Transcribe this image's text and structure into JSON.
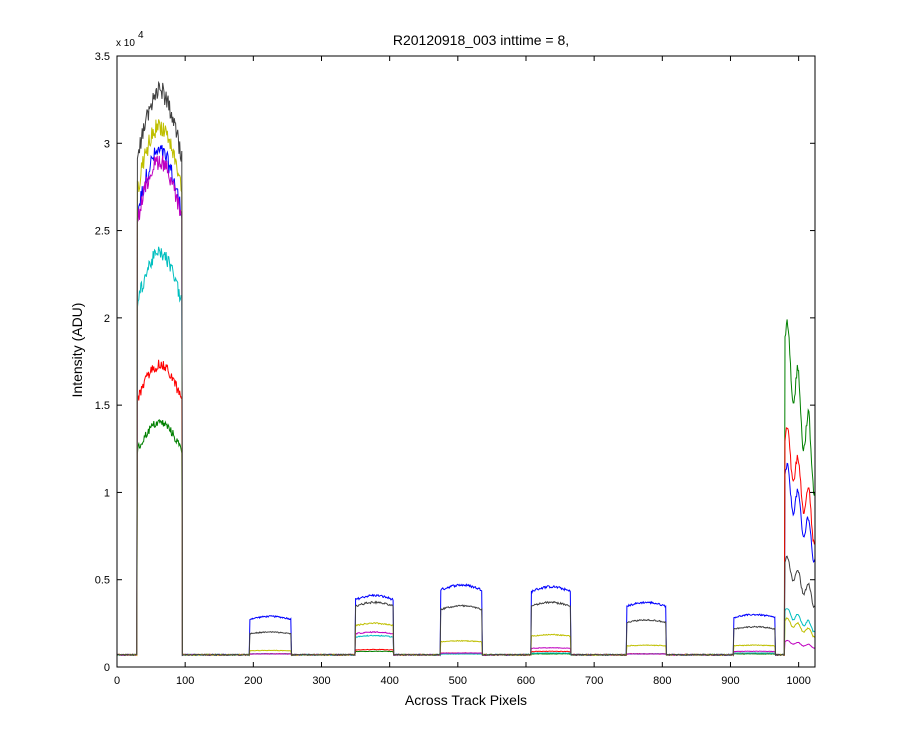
{
  "chart_data": {
    "type": "line",
    "title": "R20120918_003 inttime = 8,",
    "xlabel": "Across Track Pixels",
    "ylabel": "Intensity (ADU)",
    "xlim": [
      0,
      1024
    ],
    "ylim": [
      0,
      35000
    ],
    "x_ticks": [
      0,
      100,
      200,
      300,
      400,
      500,
      600,
      700,
      800,
      900,
      1000
    ],
    "y_ticks": [
      0,
      5000,
      10000,
      15000,
      20000,
      25000,
      30000,
      35000
    ],
    "y_tick_labels": [
      "0",
      "0.5",
      "1",
      "1.5",
      "2",
      "2.5",
      "3",
      "3.5"
    ],
    "y_exponent_base": "x 10",
    "y_exponent_power": "4",
    "grid": false,
    "legend": "none",
    "baseline": 700,
    "segments": [
      {
        "start": 30,
        "end": 95
      },
      {
        "start": 195,
        "end": 255
      },
      {
        "start": 350,
        "end": 405
      },
      {
        "start": 475,
        "end": 535
      },
      {
        "start": 608,
        "end": 665
      },
      {
        "start": 748,
        "end": 805
      },
      {
        "start": 905,
        "end": 965
      },
      {
        "start": 980,
        "end": 1024
      }
    ],
    "series": [
      {
        "color": "#0000ff",
        "levels": [
          29500,
          2900,
          4100,
          4700,
          4600,
          3700,
          3000,
          10000
        ]
      },
      {
        "color": "#008000",
        "levels": [
          14000,
          750,
          900,
          750,
          750,
          750,
          750,
          17000
        ]
      },
      {
        "color": "#ff0000",
        "levels": [
          17300,
          750,
          1000,
          800,
          900,
          750,
          800,
          12000
        ]
      },
      {
        "color": "#00bfbf",
        "levels": [
          23700,
          750,
          1800,
          750,
          800,
          750,
          800,
          3000
        ]
      },
      {
        "color": "#bf00bf",
        "levels": [
          29000,
          750,
          2000,
          800,
          1100,
          750,
          900,
          1400
        ]
      },
      {
        "color": "#bfbf00",
        "levels": [
          31000,
          950,
          2500,
          1500,
          1850,
          1250,
          1250,
          2500
        ]
      },
      {
        "color": "#404040",
        "levels": [
          33000,
          2000,
          3700,
          3500,
          3700,
          2700,
          2300,
          5500
        ]
      }
    ]
  }
}
